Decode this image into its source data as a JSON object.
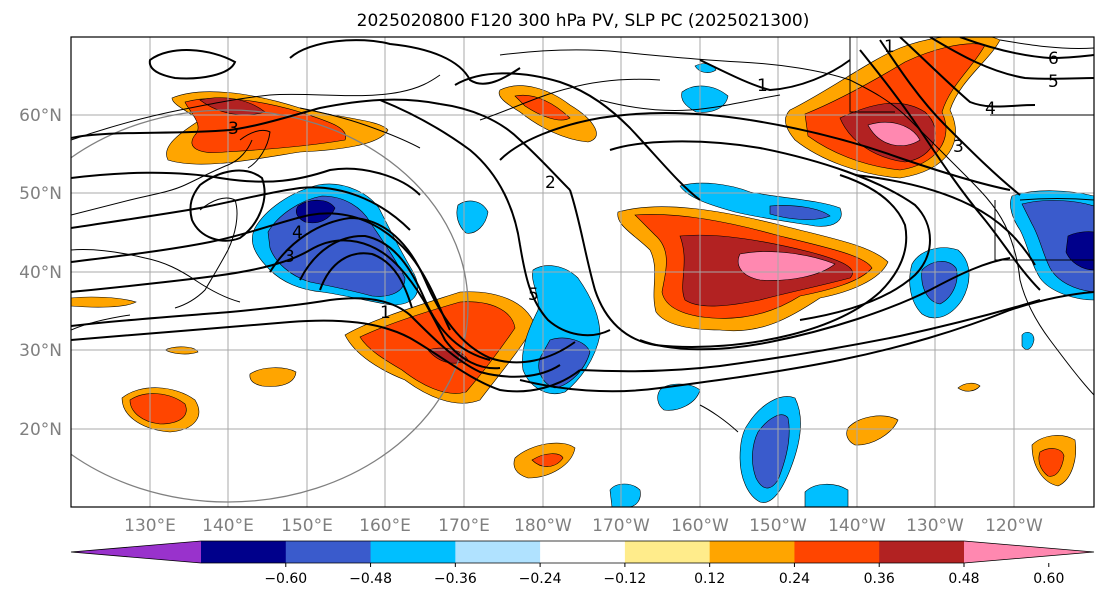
{
  "title": "2025020800 F120 300 hPa PV, SLP PC (2025021300)",
  "colors": {
    "grid": "#a8a8a8",
    "frame": "#000000",
    "land_outline": "#000000",
    "contour": "#000000",
    "circle": "#808080",
    "label_gray": "#7f7f7f"
  },
  "map": {
    "lat_labels": [
      "60°N",
      "50°N",
      "40°N",
      "30°N",
      "20°N"
    ],
    "lon_labels": [
      "130°E",
      "140°E",
      "150°E",
      "160°E",
      "170°E",
      "180°W",
      "170°W",
      "160°W",
      "150°W",
      "140°W",
      "130°W",
      "120°W"
    ],
    "contour_labels": [
      "1",
      "1",
      "2",
      "3",
      "5",
      "6",
      "5",
      "4",
      "3",
      "3",
      "1",
      "4"
    ]
  },
  "colorbar": {
    "colors": [
      "#9932cc",
      "#00008b",
      "#3a5bcc",
      "#00bfff",
      "#b0e2ff",
      "#ffffff",
      "#ffec8b",
      "#ffa500",
      "#ff4500",
      "#b22222",
      "#ff88b0"
    ],
    "tick_labels": [
      "−0.60",
      "−0.48",
      "−0.36",
      "−0.24",
      "−0.12",
      "0.12",
      "0.24",
      "0.36",
      "0.48",
      "0.60"
    ]
  },
  "pv_anomalies": [
    {
      "name": "positive",
      "level": 0.48,
      "area": "Aleutian ridge N of Japan (55-62N, 135-152E)"
    },
    {
      "name": "positive",
      "level": 0.6,
      "area": "central Pacific jet (35-45N, 165W-140W)"
    },
    {
      "name": "positive",
      "level": 0.6,
      "area": "Gulf of Alaska / British Columbia (52-60N, 145W-130W)"
    },
    {
      "name": "positive",
      "level": 0.36,
      "area": "subtropical W Pacific (30-36N, 160-175E)"
    },
    {
      "name": "negative",
      "level": -0.6,
      "area": "trough E of Japan (38-50N, 145-165E)"
    },
    {
      "name": "negative",
      "level": -0.6,
      "area": "US West Coast (38-48N, 125W-115W)"
    }
  ]
}
